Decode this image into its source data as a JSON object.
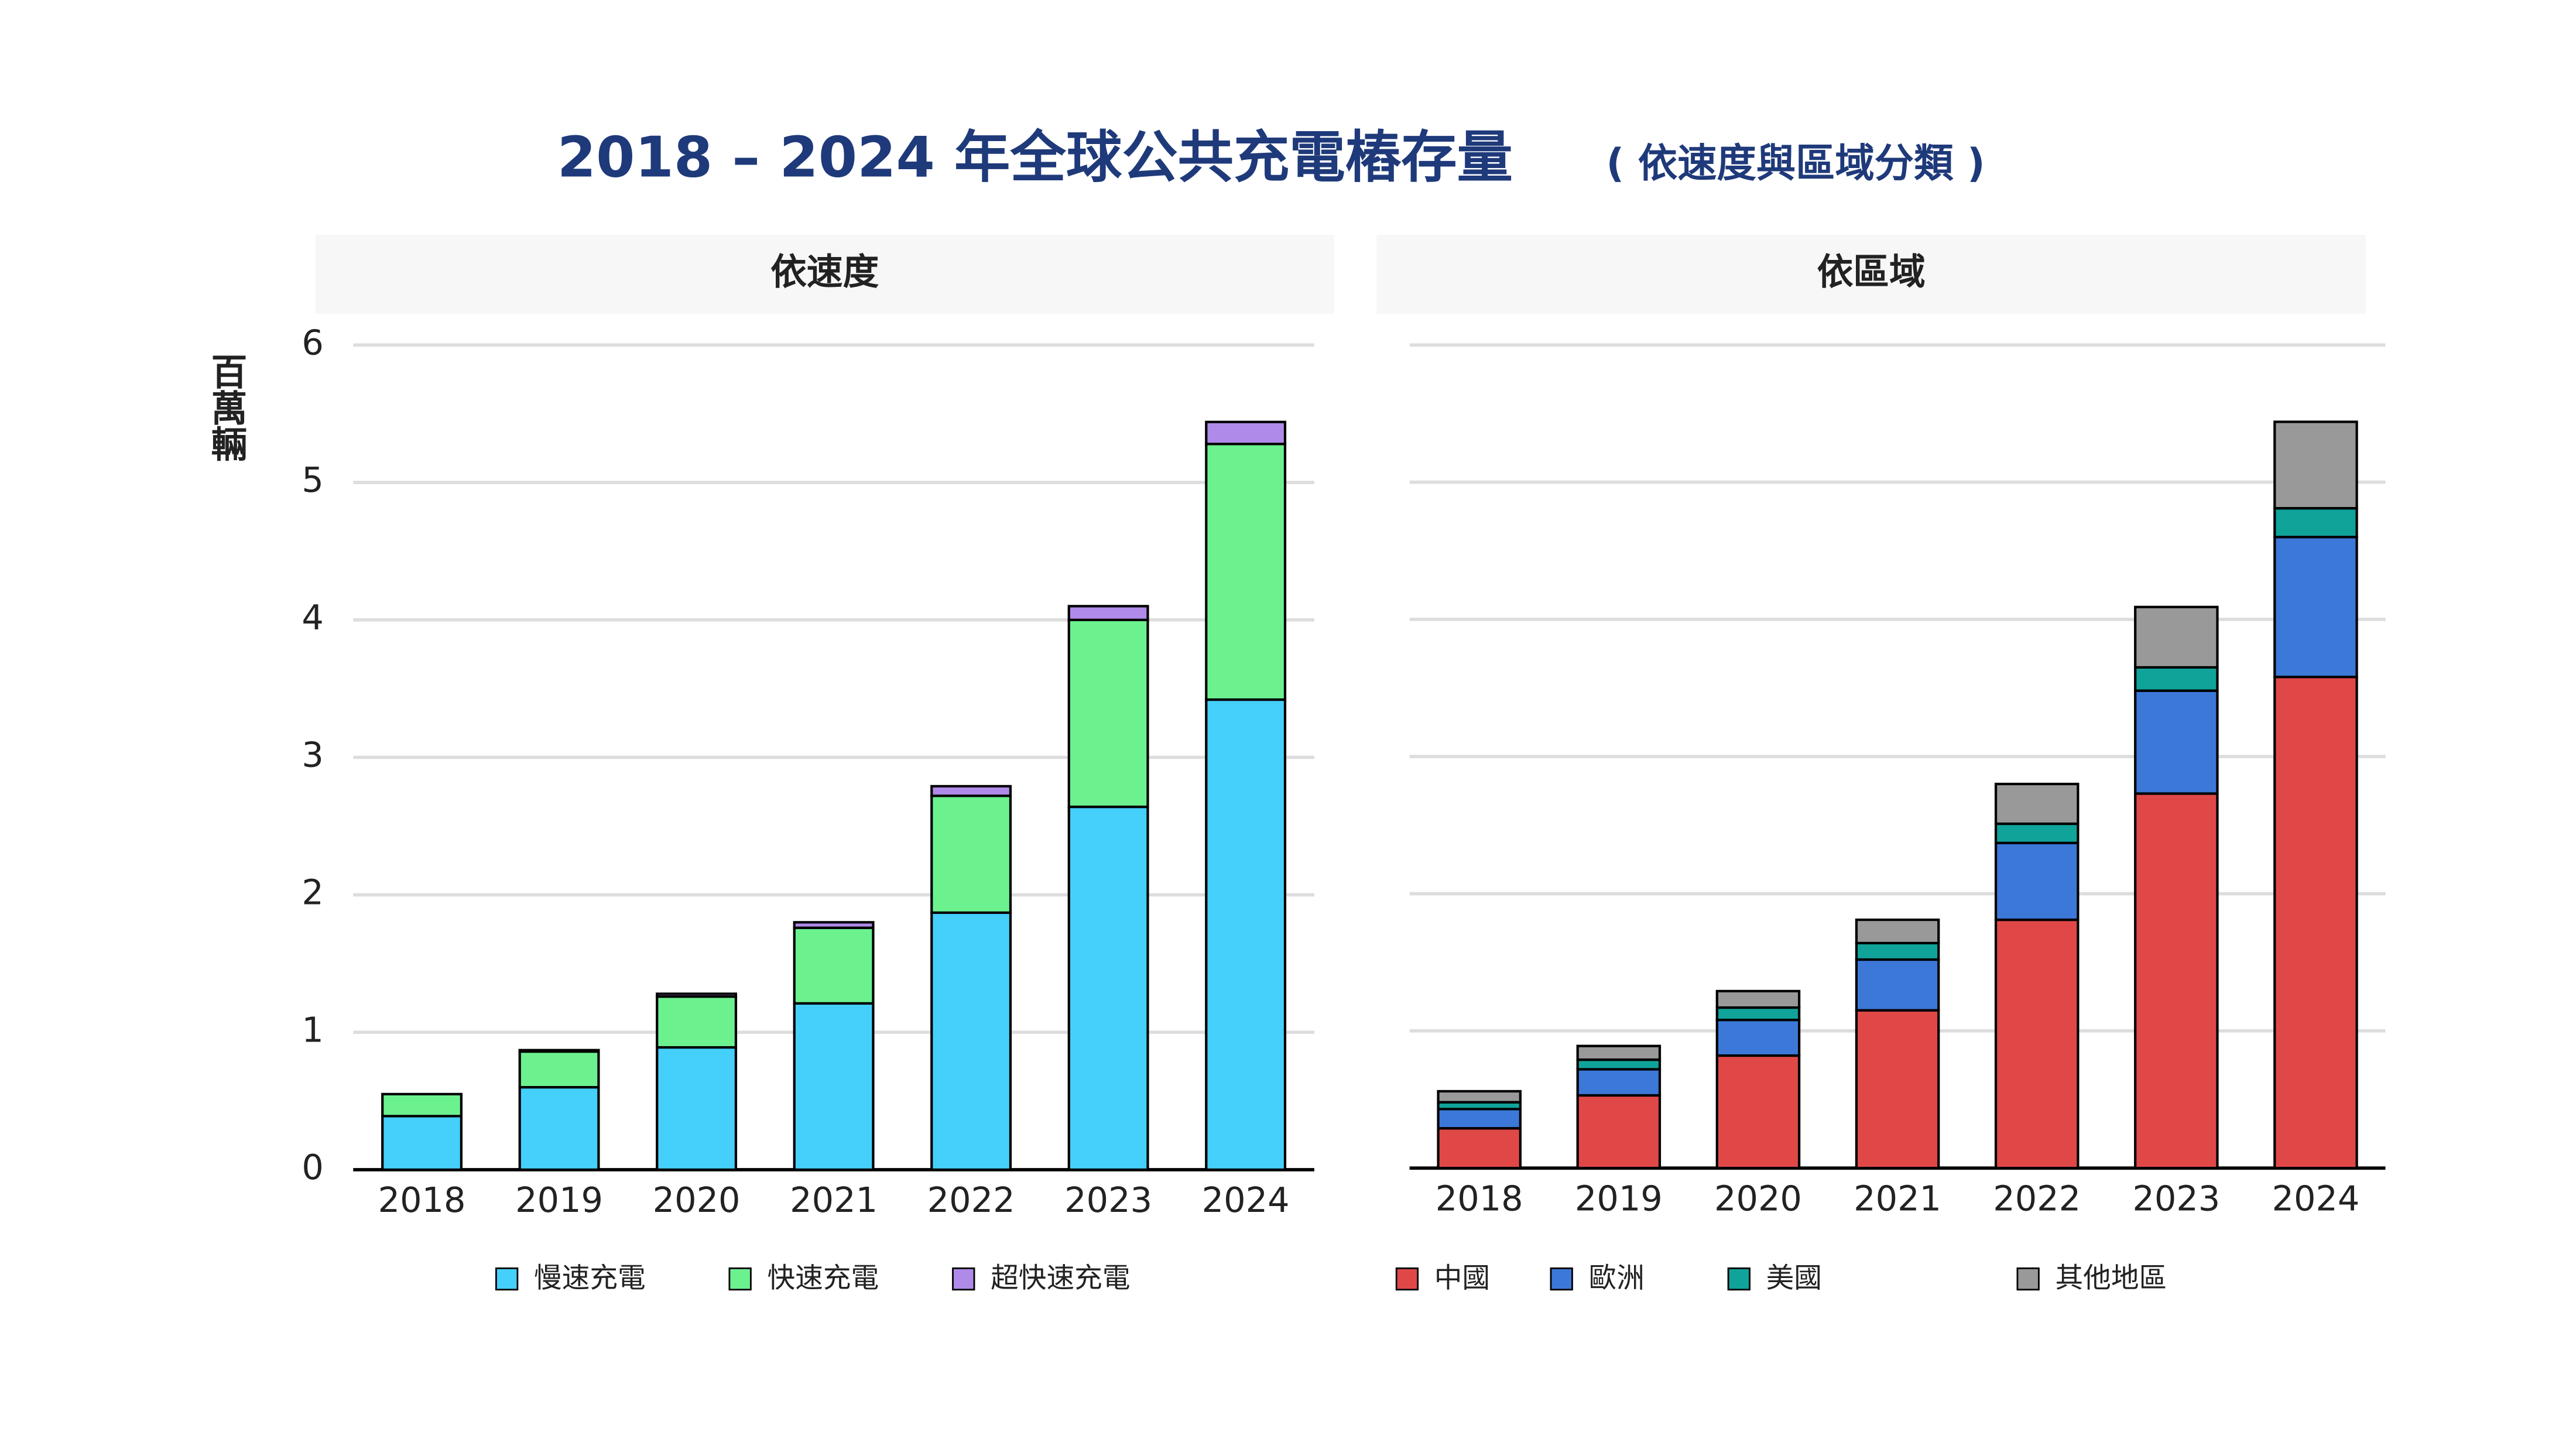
{
  "title": "2018 – 2024 年全球公共充電樁存量",
  "subtitle": "( 依速度與區域分類 )",
  "chart_data": [
    {
      "type": "bar",
      "stacked": true,
      "panel_title": "依速度",
      "y_label": "百萬輛",
      "categories": [
        "2018",
        "2019",
        "2020",
        "2021",
        "2022",
        "2023",
        "2024"
      ],
      "series": [
        {
          "name": "慢速充電",
          "color": "#45cffb",
          "values": [
            0.39,
            0.6,
            0.89,
            1.21,
            1.87,
            2.64,
            3.42
          ]
        },
        {
          "name": "快速充電",
          "color": "#6cf18f",
          "values": [
            0.16,
            0.26,
            0.37,
            0.55,
            0.85,
            1.36,
            1.86
          ]
        },
        {
          "name": "超快速充電",
          "color": "#b08ae8",
          "values": [
            0,
            0.01,
            0.02,
            0.04,
            0.07,
            0.1,
            0.16
          ]
        }
      ],
      "ylim": [
        0,
        6
      ],
      "yticks": [
        0,
        1,
        2,
        3,
        4,
        5,
        6
      ],
      "grid": true
    },
    {
      "type": "bar",
      "stacked": true,
      "panel_title": "依區域",
      "categories": [
        "2018",
        "2019",
        "2020",
        "2021",
        "2022",
        "2023",
        "2024"
      ],
      "series": [
        {
          "name": "中國",
          "color": "#e04848",
          "values": [
            0.29,
            0.53,
            0.82,
            1.15,
            1.81,
            2.73,
            3.58
          ]
        },
        {
          "name": "歐洲",
          "color": "#3c78d8",
          "values": [
            0.14,
            0.19,
            0.26,
            0.37,
            0.56,
            0.75,
            1.02
          ]
        },
        {
          "name": "美國",
          "color": "#10a39a",
          "values": [
            0.05,
            0.07,
            0.09,
            0.12,
            0.14,
            0.17,
            0.21
          ]
        },
        {
          "name": "其他地區",
          "color": "#999999",
          "values": [
            0.08,
            0.1,
            0.12,
            0.17,
            0.29,
            0.44,
            0.63
          ]
        }
      ],
      "ylim": [
        0,
        6
      ],
      "yticks": [
        0,
        1,
        2,
        3,
        4,
        5,
        6
      ],
      "grid": true
    }
  ]
}
